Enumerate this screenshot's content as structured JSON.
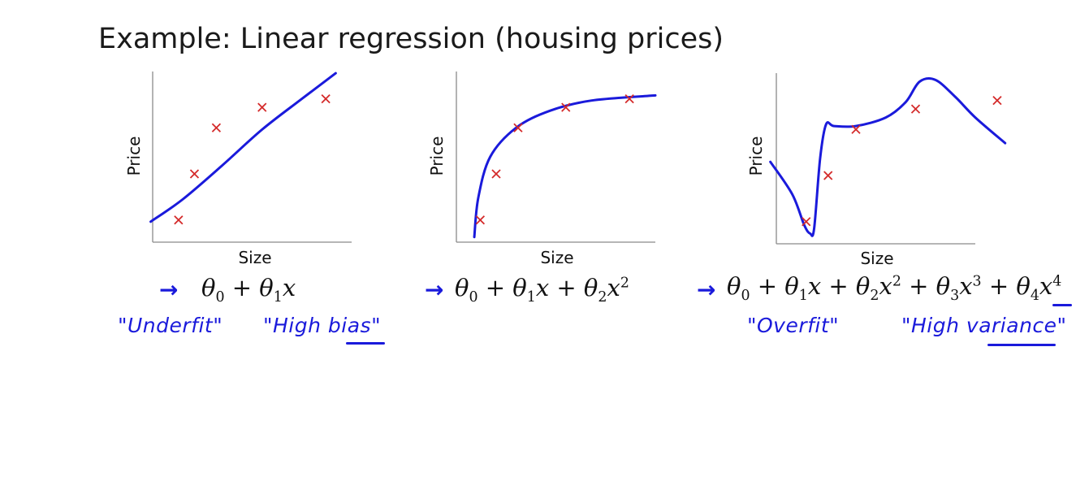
{
  "title": "Example: Linear regression (housing prices)",
  "colors": {
    "curve": "#1a1adb",
    "marker": "#d42a2a",
    "axis": "#8a8a8a"
  },
  "chart_data": [
    {
      "type": "scatter",
      "xlabel": "Size",
      "ylabel": "Price",
      "points": [
        [
          0.13,
          0.13
        ],
        [
          0.21,
          0.4
        ],
        [
          0.32,
          0.67
        ],
        [
          0.55,
          0.79
        ],
        [
          0.87,
          0.84
        ]
      ],
      "fit": "linear",
      "equation": "θ0 + θ1x",
      "annotations": [
        "\"Underfit\"",
        "\"High bias\""
      ]
    },
    {
      "type": "scatter",
      "xlabel": "Size",
      "ylabel": "Price",
      "points": [
        [
          0.12,
          0.13
        ],
        [
          0.2,
          0.4
        ],
        [
          0.31,
          0.67
        ],
        [
          0.55,
          0.79
        ],
        [
          0.87,
          0.84
        ]
      ],
      "fit": "quadratic",
      "equation": "θ0 + θ1x + θ2x^2",
      "annotations": []
    },
    {
      "type": "scatter",
      "xlabel": "Size",
      "ylabel": "Price",
      "points": [
        [
          0.15,
          0.13
        ],
        [
          0.26,
          0.4
        ],
        [
          0.4,
          0.67
        ],
        [
          0.7,
          0.79
        ],
        [
          1.11,
          0.84
        ]
      ],
      "fit": "quartic",
      "equation": "θ0 + θ1x + θ2x^2 + θ3x^3 + θ4x^4",
      "annotations": [
        "\"Overfit\"",
        "\"High variance\""
      ]
    }
  ]
}
